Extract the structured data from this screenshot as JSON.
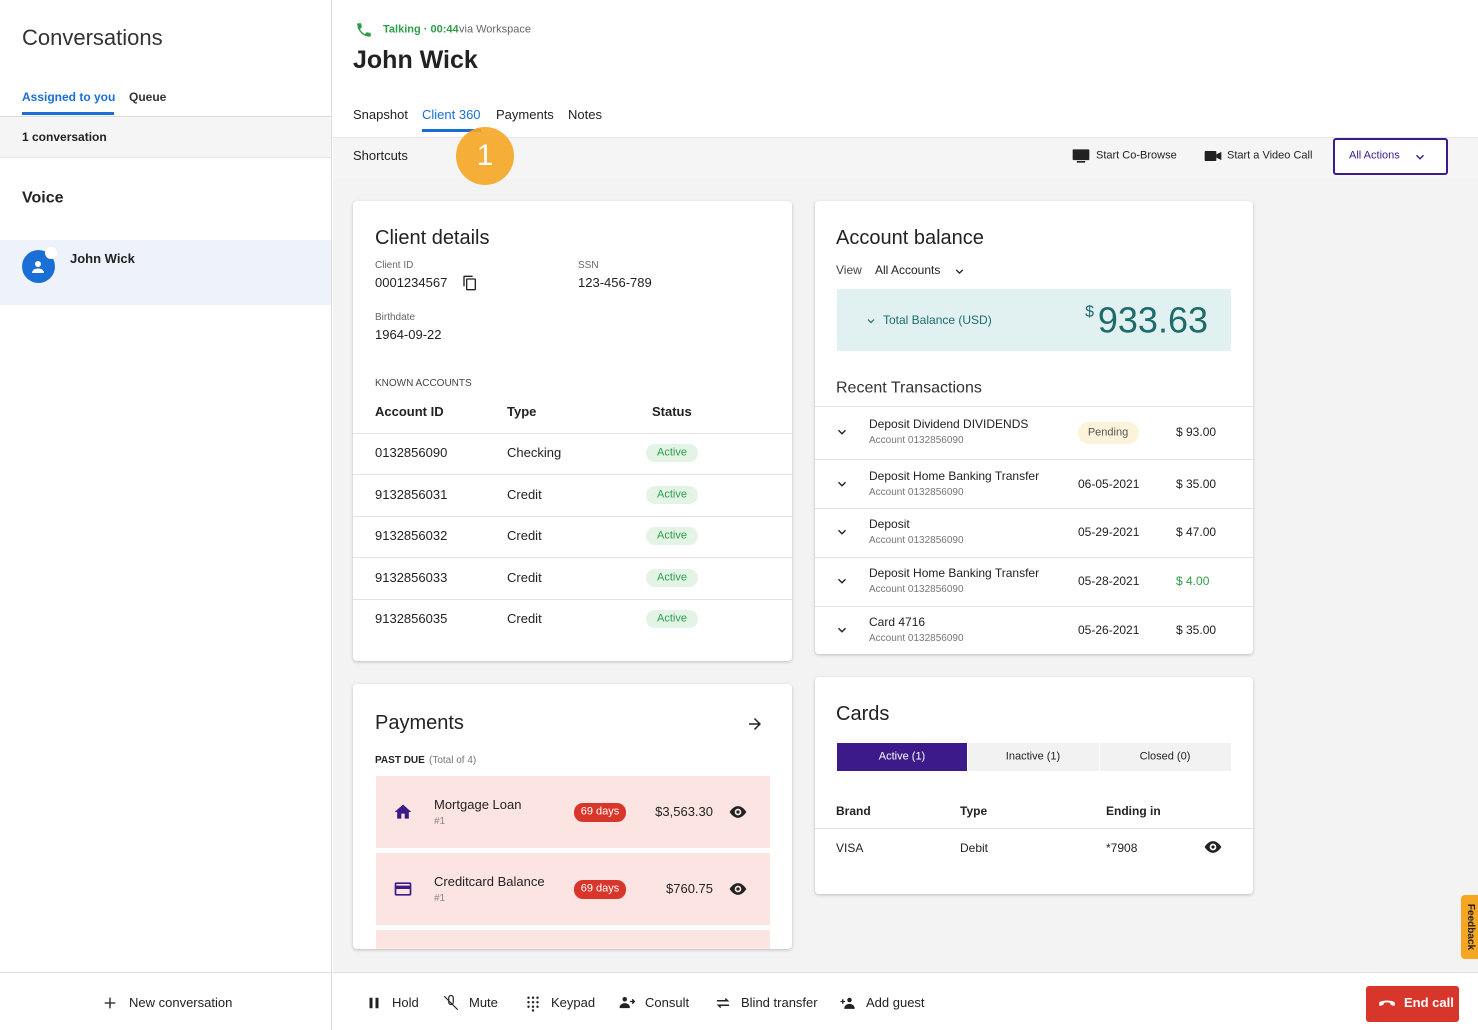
{
  "sidebar": {
    "title": "Conversations",
    "tabs": [
      "Assigned to you",
      "Queue"
    ],
    "count": "1 conversation",
    "section": "Voice",
    "contact": "John Wick",
    "new_conversation": "New conversation"
  },
  "header": {
    "status": "Talking · 00:44",
    "via": "via Workspace",
    "name": "John Wick",
    "tabs": [
      "Snapshot",
      "Client 360",
      "Payments",
      "Notes"
    ],
    "badge": "1",
    "shortcuts": "Shortcuts",
    "actions": [
      "Start Co-Browse",
      "Start a Video Call"
    ],
    "all_actions": "All Actions"
  },
  "client_details": {
    "title": "Client details",
    "fields": [
      {
        "label": "Client ID",
        "value": "0001234567"
      },
      {
        "label": "SSN",
        "value": "123-456-789"
      },
      {
        "label": "Birthdate",
        "value": "1964-09-22"
      }
    ],
    "known_accounts": "KNOWN ACCOUNTS",
    "columns": [
      "Account ID",
      "Type",
      "Status"
    ],
    "rows": [
      [
        "0132856090",
        "Checking",
        "Active"
      ],
      [
        "9132856031",
        "Credit",
        "Active"
      ],
      [
        "9132856032",
        "Credit",
        "Active"
      ],
      [
        "9132856033",
        "Credit",
        "Active"
      ],
      [
        "9132856035",
        "Credit",
        "Active"
      ]
    ]
  },
  "payments": {
    "title": "Payments",
    "past_due": "PAST DUE",
    "total": "(Total of 4)",
    "items": [
      {
        "name": "Mortgage Loan",
        "sub": "#1",
        "days": "69 days",
        "amount": "$3,563.30"
      },
      {
        "name": "Creditcard Balance",
        "sub": "#1",
        "days": "69 days",
        "amount": "$760.75"
      }
    ]
  },
  "account_balance": {
    "title": "Account balance",
    "view": "View",
    "account_filter": "All Accounts",
    "total_label": "Total Balance (USD)",
    "total_currency": "$",
    "total_value": "933.63",
    "recent": "Recent Transactions",
    "transactions": [
      {
        "name": "Deposit Dividend DIVIDENDS",
        "account": "Account 0132856090",
        "status": "Pending",
        "amount": "$ 93.00"
      },
      {
        "name": "Deposit Home Banking Transfer",
        "account": "Account 0132856090",
        "date": "06-05-2021",
        "amount": "$ 35.00"
      },
      {
        "name": "Deposit",
        "account": "Account 0132856090",
        "date": "05-29-2021",
        "amount": "$ 47.00"
      },
      {
        "name": "Deposit Home Banking Transfer",
        "account": "Account 0132856090",
        "date": "05-28-2021",
        "amount": "$ 4.00",
        "color": "#2e9d4a"
      },
      {
        "name": "Card 4716",
        "account": "Account 0132856090",
        "date": "05-26-2021",
        "amount": "$ 35.00"
      }
    ]
  },
  "cards": {
    "title": "Cards",
    "tabs": [
      "Active (1)",
      "Inactive (1)",
      "Closed (0)"
    ],
    "columns": [
      "Brand",
      "Type",
      "Ending in"
    ],
    "rows": [
      [
        "VISA",
        "Debit",
        "*7908"
      ]
    ]
  },
  "call_bar": {
    "buttons": [
      "Hold",
      "Mute",
      "Keypad",
      "Consult",
      "Blind transfer",
      "Add guest"
    ],
    "end_call": "End call"
  },
  "feedback": "Feedback"
}
